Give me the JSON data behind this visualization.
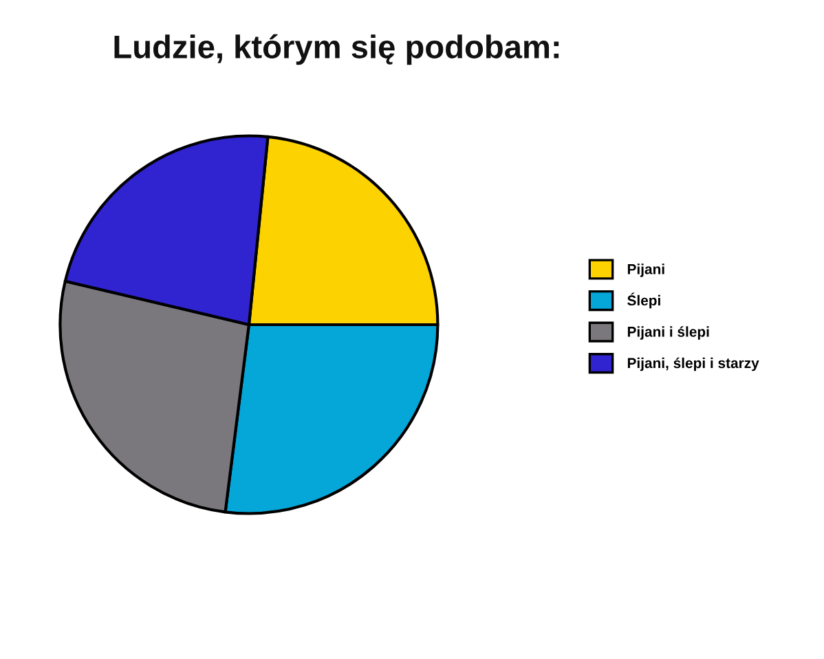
{
  "chart_data": {
    "type": "pie",
    "title": "Ludzie, którym się podobam:",
    "categories": [
      "Pijani",
      "Ślepi",
      "Pijani i ślepi",
      "Pijani, ślepi i starzy"
    ],
    "values": [
      23.4,
      27.0,
      26.7,
      22.9
    ],
    "colors": [
      "#fcd200",
      "#05a6d8",
      "#7b787d",
      "#3023d0"
    ],
    "legend": "right"
  }
}
